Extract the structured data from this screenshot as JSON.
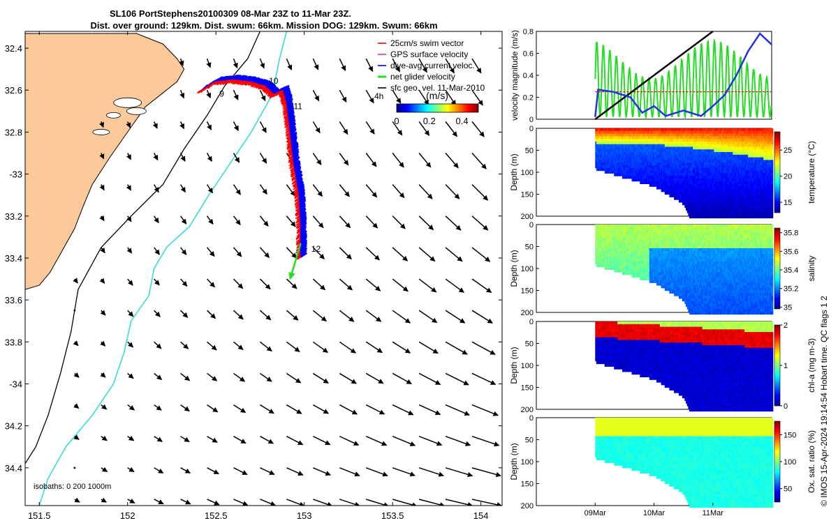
{
  "header": {
    "title_line1": "SL106 PortStephens20100309 08-Mar 23Z to 11-Mar 23Z.",
    "title_line2": "Dist. over ground: 129km. Dist. swum: 66km. Mission DOG: 129km. Swum: 66km"
  },
  "credit": "© IMOS 15-Apr-2024 19:14:54 Hobart time. QC flags 1  2",
  "colors": {
    "land": "#fbc99a",
    "coast_line": "#000000",
    "isobath_200": "#000000",
    "isobath_1000": "#33dddd",
    "track_swim": "#ff0000",
    "track_gps": "#cc33cc",
    "track_current": "#0000ff",
    "net_velocity": "#22dd22",
    "geo_vel": "#000000"
  },
  "chart_data": [
    {
      "type": "map",
      "name": "glider track map",
      "xlim": [
        151.42,
        154.12
      ],
      "ylim": [
        -34.58,
        -32.32
      ],
      "x_ticks": [
        151.5,
        152,
        152.5,
        153,
        153.5,
        154
      ],
      "x_tick_labels": [
        "151.5",
        "152",
        "152.5",
        "153",
        "153.5",
        "154"
      ],
      "y_ticks": [
        -32.4,
        -32.6,
        -32.8,
        -33,
        -33.2,
        -33.4,
        -33.6,
        -33.8,
        -34,
        -34.2,
        -34.4
      ],
      "y_tick_labels": [
        "32.4",
        "32.6",
        "32.8",
        "-33",
        "33.2",
        "33.4",
        "33.6",
        "33.8",
        "-34",
        "34.2",
        "34.4"
      ],
      "isobaths_label": "isobaths: 0   200  1000m",
      "legend": [
        {
          "label": "25cm/s swim vector",
          "color": "#ff0000"
        },
        {
          "label": "GPS surface velocity",
          "color": "#cc33cc"
        },
        {
          "label": "dive-avg current veloc.",
          "color": "#0000ff"
        },
        {
          "label": "net glider velocity",
          "color": "#22dd22"
        },
        {
          "label": "sfc geo. vel. 11-Mar-2010",
          "color": "#000000"
        }
      ],
      "scale_arrow_label": "4h",
      "colorbar": {
        "label": "(m/s)",
        "ticks": [
          0,
          0.2,
          0.4
        ],
        "tick_labels": [
          "0",
          "0.2",
          "0.4"
        ],
        "range": [
          0,
          0.5
        ]
      },
      "day_labels": [
        {
          "text": "9",
          "lon": 152.52,
          "lat": -32.63
        },
        {
          "text": "10",
          "lon": 152.8,
          "lat": -32.57
        },
        {
          "text": "11",
          "lon": 152.94,
          "lat": -32.69
        },
        {
          "text": "12",
          "lon": 153.04,
          "lat": -33.37
        }
      ],
      "track": [
        [
          152.42,
          -32.6
        ],
        [
          152.5,
          -32.56
        ],
        [
          152.6,
          -32.55
        ],
        [
          152.7,
          -32.56
        ],
        [
          152.78,
          -32.58
        ],
        [
          152.83,
          -32.62
        ],
        [
          152.88,
          -32.6
        ],
        [
          152.9,
          -32.66
        ],
        [
          152.92,
          -32.8
        ],
        [
          152.94,
          -32.95
        ],
        [
          152.97,
          -33.1
        ],
        [
          152.98,
          -33.25
        ],
        [
          152.98,
          -33.4
        ]
      ],
      "net_velocity_arrow": {
        "from": [
          152.98,
          -33.33
        ],
        "to": [
          152.92,
          -33.5
        ]
      },
      "coastline": [
        [
          151.42,
          -32.33
        ],
        [
          152.05,
          -32.33
        ],
        [
          152.2,
          -32.38
        ],
        [
          152.28,
          -32.45
        ],
        [
          152.32,
          -32.5
        ],
        [
          152.28,
          -32.56
        ],
        [
          152.22,
          -32.6
        ],
        [
          152.1,
          -32.68
        ],
        [
          152.0,
          -32.8
        ],
        [
          151.9,
          -32.92
        ],
        [
          151.8,
          -33.05
        ],
        [
          151.75,
          -33.15
        ],
        [
          151.7,
          -33.26
        ],
        [
          151.62,
          -33.38
        ],
        [
          151.56,
          -33.47
        ],
        [
          151.5,
          -33.53
        ],
        [
          151.42,
          -33.55
        ]
      ],
      "isobath_200": [
        [
          152.75,
          -32.32
        ],
        [
          152.68,
          -32.45
        ],
        [
          152.55,
          -32.58
        ],
        [
          152.45,
          -32.72
        ],
        [
          152.32,
          -32.88
        ],
        [
          152.2,
          -33.05
        ],
        [
          152.02,
          -33.2
        ],
        [
          151.85,
          -33.35
        ],
        [
          151.72,
          -33.55
        ],
        [
          151.68,
          -33.75
        ],
        [
          151.62,
          -33.95
        ],
        [
          151.55,
          -34.15
        ],
        [
          151.48,
          -34.3
        ],
        [
          151.42,
          -34.38
        ]
      ],
      "isobath_1000": [
        [
          152.9,
          -32.32
        ],
        [
          152.86,
          -32.45
        ],
        [
          152.82,
          -32.62
        ],
        [
          152.7,
          -32.8
        ],
        [
          152.58,
          -32.95
        ],
        [
          152.46,
          -33.1
        ],
        [
          152.35,
          -33.25
        ],
        [
          152.22,
          -33.35
        ],
        [
          152.15,
          -33.45
        ],
        [
          152.12,
          -33.58
        ],
        [
          152.02,
          -33.7
        ],
        [
          151.98,
          -33.85
        ],
        [
          151.92,
          -34.0
        ],
        [
          151.8,
          -34.15
        ],
        [
          151.65,
          -34.3
        ],
        [
          151.55,
          -34.45
        ],
        [
          151.5,
          -34.58
        ]
      ],
      "geo_vel_ref": "11-Mar-2010"
    },
    {
      "type": "line",
      "name": "velocity magnitude",
      "ylabel": "velocity magnitude (m/s)",
      "ylim": [
        0,
        0.8
      ],
      "y_ticks": [
        0,
        0.2,
        0.4,
        0.6,
        0.8
      ],
      "y_tick_labels": [
        "0",
        "0.2",
        "0.4",
        "0.6",
        "0.8"
      ],
      "xlim": [
        8.0,
        12.0
      ],
      "series": [
        {
          "name": "net glider velocity (oscillating)",
          "color": "#22dd22",
          "x_start": 9.0,
          "x_end": 12.0,
          "low": 0.02,
          "high": 0.72
        },
        {
          "name": "swim speed",
          "color": "#ff0000",
          "x": [
            9.0,
            12.0
          ],
          "values": [
            0.25,
            0.25
          ]
        },
        {
          "name": "distance (scaled)",
          "color": "#000000",
          "x": [
            9.0,
            9.3,
            9.6,
            9.9,
            10.2,
            10.5,
            10.8,
            11.0
          ],
          "values": [
            0.0,
            0.12,
            0.24,
            0.36,
            0.48,
            0.6,
            0.72,
            0.8
          ]
        },
        {
          "name": "dive-avg current",
          "color": "#2233dd",
          "x": [
            9.0,
            9.05,
            9.3,
            9.6,
            9.8,
            10.0,
            10.2,
            10.5,
            10.8,
            11.0,
            11.2,
            11.4,
            11.6,
            11.8,
            12.0
          ],
          "values": [
            0.02,
            0.27,
            0.25,
            0.2,
            0.06,
            0.12,
            0.03,
            0.08,
            0.03,
            0.12,
            0.22,
            0.4,
            0.62,
            0.78,
            0.68
          ]
        }
      ]
    },
    {
      "type": "heatmap",
      "name": "temperature section",
      "ylabel": "Depth (m)",
      "cbar_label": "temperature (°C)",
      "y_ticks": [
        0,
        50,
        100,
        150,
        200
      ],
      "y_tick_labels": [
        "0",
        "50",
        "100",
        "150",
        "200"
      ],
      "cbar_ticks": [
        15,
        20,
        25
      ],
      "cbar_tick_labels": [
        "15",
        "20",
        "25"
      ],
      "cbar_range": [
        13,
        28.5
      ],
      "xlim": [
        8.0,
        12.0
      ],
      "data_start": 9.0,
      "data_end": 12.0,
      "max_depth_profile": [
        [
          9.0,
          90
        ],
        [
          9.5,
          110
        ],
        [
          10.0,
          130
        ],
        [
          10.5,
          170
        ],
        [
          10.6,
          200
        ],
        [
          12.0,
          200
        ]
      ]
    },
    {
      "type": "heatmap",
      "name": "salinity section",
      "ylabel": "Depth (m)",
      "cbar_label": "salinity",
      "y_ticks": [
        0,
        50,
        100,
        150,
        200
      ],
      "y_tick_labels": [
        "0",
        "50",
        "100",
        "150",
        "200"
      ],
      "cbar_ticks": [
        35,
        35.2,
        35.4,
        35.6,
        35.8
      ],
      "cbar_tick_labels": [
        "35",
        "35.2",
        "35.4",
        "35.6",
        "35.8"
      ],
      "cbar_range": [
        34.98,
        35.85
      ],
      "xlim": [
        8.0,
        12.0
      ],
      "data_start": 9.0,
      "data_end": 12.0,
      "max_depth_profile": [
        [
          9.0,
          90
        ],
        [
          9.5,
          110
        ],
        [
          10.0,
          130
        ],
        [
          10.5,
          170
        ],
        [
          10.6,
          200
        ],
        [
          12.0,
          200
        ]
      ]
    },
    {
      "type": "heatmap",
      "name": "chlorophyll section",
      "ylabel": "Depth (m)",
      "cbar_label": "chl-a (mg m-3)",
      "y_ticks": [
        0,
        50,
        100,
        150,
        200
      ],
      "y_tick_labels": [
        "0",
        "50",
        "100",
        "150",
        "200"
      ],
      "cbar_ticks": [
        0,
        1,
        2
      ],
      "cbar_tick_labels": [
        "0",
        "1",
        "2"
      ],
      "cbar_range": [
        0,
        2
      ],
      "xlim": [
        8.0,
        12.0
      ],
      "data_start": 9.0,
      "data_end": 12.0,
      "max_depth_profile": [
        [
          9.0,
          90
        ],
        [
          9.5,
          110
        ],
        [
          10.0,
          130
        ],
        [
          10.5,
          170
        ],
        [
          10.6,
          200
        ],
        [
          12.0,
          200
        ]
      ]
    },
    {
      "type": "heatmap",
      "name": "oxygen saturation section",
      "ylabel": "Depth (m)",
      "cbar_label": "Ox. sat. ratio (%)",
      "y_ticks": [
        0,
        50,
        100,
        150,
        200
      ],
      "y_tick_labels": [
        "0",
        "50",
        "100",
        "150",
        "200"
      ],
      "cbar_ticks": [
        50,
        100,
        150
      ],
      "cbar_tick_labels": [
        "50",
        "100",
        "150"
      ],
      "cbar_range": [
        25,
        175
      ],
      "xlim": [
        8.0,
        12.0
      ],
      "data_start": 9.0,
      "data_end": 12.0,
      "max_depth_profile": [
        [
          9.0,
          90
        ],
        [
          9.5,
          110
        ],
        [
          10.0,
          130
        ],
        [
          10.5,
          170
        ],
        [
          10.6,
          200
        ],
        [
          12.0,
          200
        ]
      ],
      "x_ticks": [
        9,
        10,
        11
      ],
      "x_tick_labels": [
        "09Mar",
        "10Mar",
        "11Mar"
      ]
    }
  ]
}
